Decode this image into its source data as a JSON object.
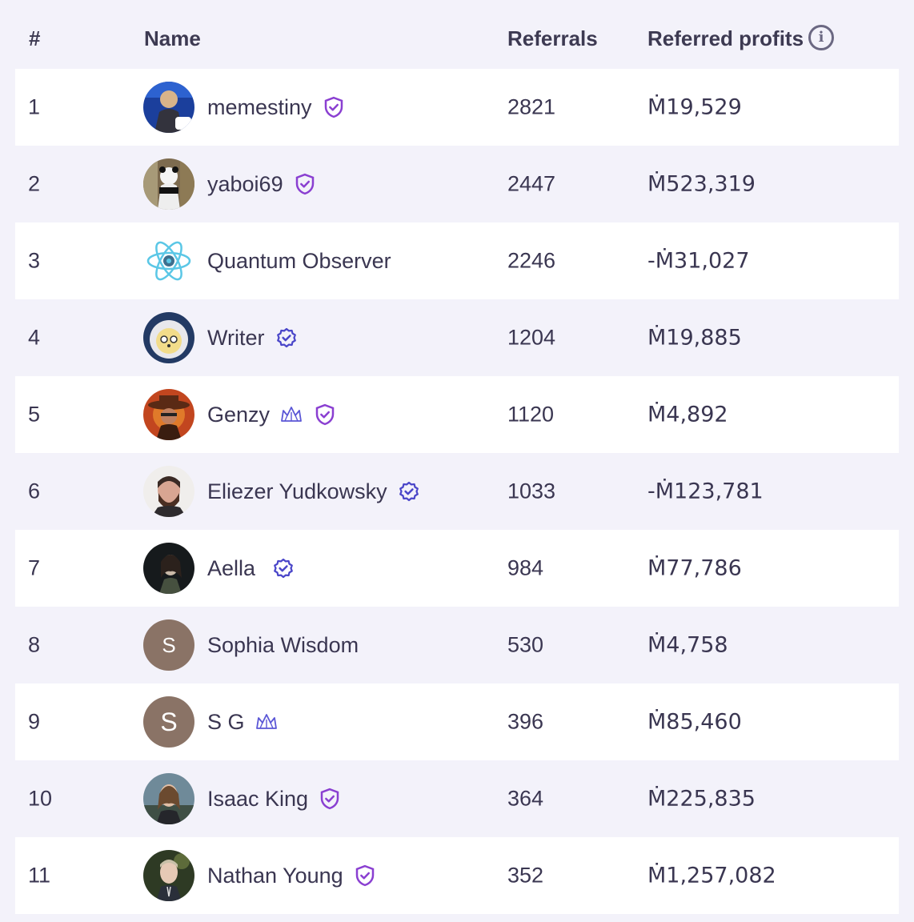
{
  "header": {
    "rank": "#",
    "name": "Name",
    "referrals": "Referrals",
    "profits": "Referred profits",
    "info_icon": "info-icon"
  },
  "rows": [
    {
      "rank": "1",
      "name": "memestiny",
      "badge": "shield-check",
      "referrals": "2821",
      "profits": "Ṁ19,529"
    },
    {
      "rank": "2",
      "name": "yaboi69",
      "badge": "shield-check",
      "referrals": "2447",
      "profits": "Ṁ523,319"
    },
    {
      "rank": "3",
      "name": "Quantum Observer",
      "badge": "",
      "referrals": "2246",
      "profits": "-Ṁ31,027"
    },
    {
      "rank": "4",
      "name": "Writer",
      "badge": "verified-check",
      "referrals": "1204",
      "profits": "Ṁ19,885"
    },
    {
      "rank": "5",
      "name": "Genzy",
      "badge": "shield-check",
      "crown": true,
      "referrals": "1120",
      "profits": "Ṁ4,892"
    },
    {
      "rank": "6",
      "name": "Eliezer Yudkowsky",
      "badge": "verified-check",
      "referrals": "1033",
      "profits": "-Ṁ123,781"
    },
    {
      "rank": "7",
      "name": "Aella",
      "badge": "verified-check",
      "referrals": "984",
      "profits": "Ṁ77,786"
    },
    {
      "rank": "8",
      "name": "Sophia Wisdom",
      "badge": "",
      "avatar_letter": "S",
      "referrals": "530",
      "profits": "Ṁ4,758"
    },
    {
      "rank": "9",
      "name": "S G",
      "badge": "",
      "crown": true,
      "avatar_letter": "S",
      "referrals": "396",
      "profits": "Ṁ85,460"
    },
    {
      "rank": "10",
      "name": "Isaac King",
      "badge": "shield-check",
      "referrals": "364",
      "profits": "Ṁ225,835"
    },
    {
      "rank": "11",
      "name": "Nathan Young",
      "badge": "shield-check",
      "referrals": "352",
      "profits": "Ṁ1,257,082"
    }
  ],
  "colors": {
    "shield": "#8a3fd1",
    "verified": "#4a46c9",
    "crown": "#5a56d6",
    "row_alt": "#ffffff",
    "background": "#f3f2fa"
  }
}
